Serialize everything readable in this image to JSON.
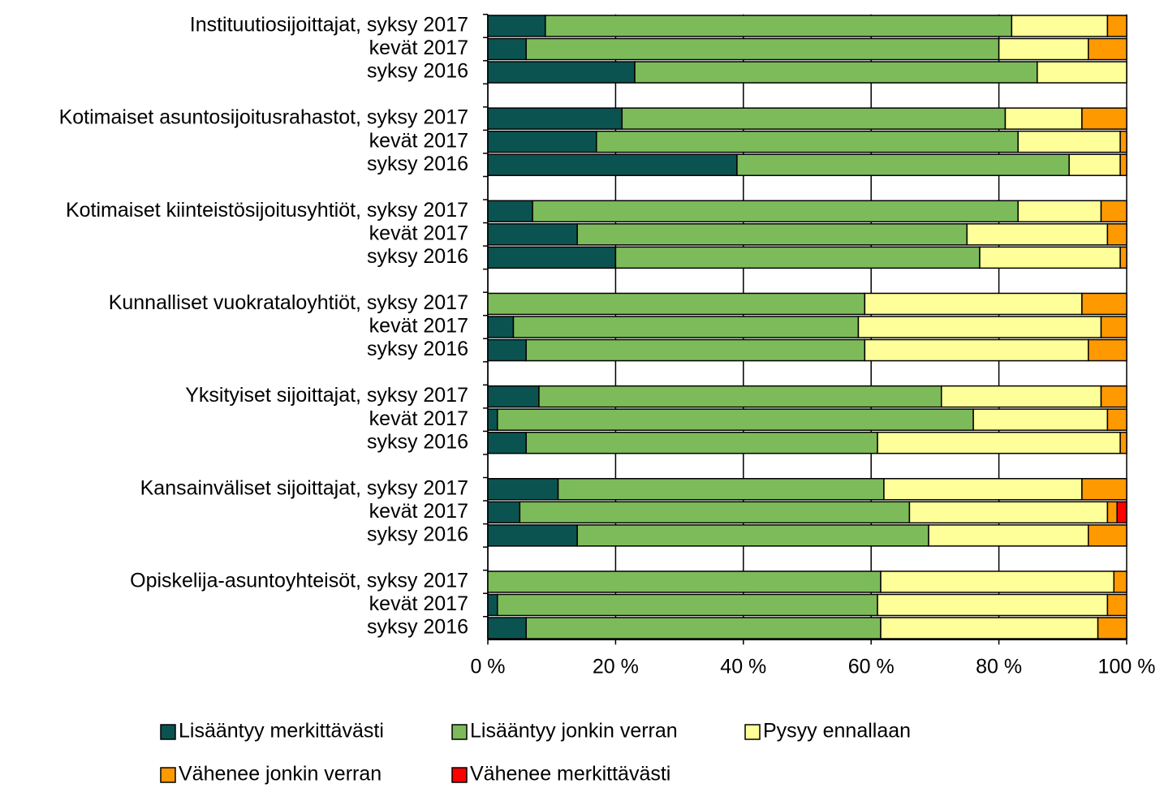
{
  "chart_data": {
    "type": "stacked_barh",
    "categories": [
      "Instituutiosijoittajat, syksy 2017",
      "kevät 2017",
      "syksy 2016",
      null,
      "Kotimaiset asuntosijoitusrahastot, syksy 2017",
      "kevät 2017",
      "syksy 2016",
      null,
      "Kotimaiset kiinteistösijoitusyhtiöt, syksy 2017",
      "kevät 2017",
      "syksy 2016",
      null,
      "Kunnalliset vuokrataloyhtiöt, syksy 2017",
      "kevät 2017",
      "syksy 2016",
      null,
      "Yksityiset sijoittajat, syksy 2017",
      "kevät 2017",
      "syksy 2016",
      null,
      "Kansainväliset sijoittajat, syksy 2017",
      "kevät 2017",
      "syksy 2016",
      null,
      "Opiskelija-asuntoyhteisöt, syksy 2017",
      "kevät 2017",
      "syksy 2016"
    ],
    "series": [
      {
        "name": "Lisääntyy merkittävästi",
        "color": "#0b5350",
        "values": [
          9,
          6,
          23,
          null,
          21,
          17,
          39,
          null,
          7,
          14,
          20,
          null,
          0,
          4,
          6,
          null,
          8,
          1.5,
          6,
          null,
          11,
          5,
          14,
          null,
          0,
          1.5,
          6
        ]
      },
      {
        "name": "Lisääntyy jonkin verran",
        "color": "#7dbb5a",
        "values": [
          73,
          74,
          63,
          null,
          60,
          66,
          52,
          null,
          76,
          61,
          57,
          null,
          59,
          54,
          53,
          null,
          63,
          74.5,
          55,
          null,
          51,
          61,
          55,
          null,
          61.5,
          59.5,
          55.5
        ]
      },
      {
        "name": "Pysyy ennallaan",
        "color": "#ffff99",
        "values": [
          15,
          14,
          14,
          null,
          12,
          16,
          8,
          null,
          13,
          22,
          22,
          null,
          34,
          38,
          35,
          null,
          25,
          21,
          38,
          null,
          31,
          31,
          25,
          null,
          36.5,
          36,
          34
        ]
      },
      {
        "name": "Vähenee jonkin verran",
        "color": "#ff9900",
        "values": [
          3,
          6,
          0,
          null,
          7,
          1,
          1,
          null,
          4,
          3,
          1,
          null,
          7,
          4,
          6,
          null,
          4,
          3,
          1,
          null,
          7,
          1.5,
          6,
          null,
          2,
          3,
          4.5
        ]
      },
      {
        "name": "Vähenee merkittävästi",
        "color": "#ff0000",
        "values": [
          0,
          0,
          0,
          null,
          0,
          0,
          0,
          null,
          0,
          0,
          0,
          null,
          0,
          0,
          0,
          null,
          0,
          0,
          0,
          null,
          0,
          1.5,
          0,
          null,
          0,
          0,
          0
        ]
      }
    ],
    "xlim": [
      0,
      100
    ],
    "xticks": [
      {
        "value": 0,
        "label": "0 %"
      },
      {
        "value": 20,
        "label": "20 %"
      },
      {
        "value": 40,
        "label": "40 %"
      },
      {
        "value": 60,
        "label": "60 %"
      },
      {
        "value": 80,
        "label": "80 %"
      },
      {
        "value": 100,
        "label": "100 %"
      }
    ],
    "grid": true
  }
}
